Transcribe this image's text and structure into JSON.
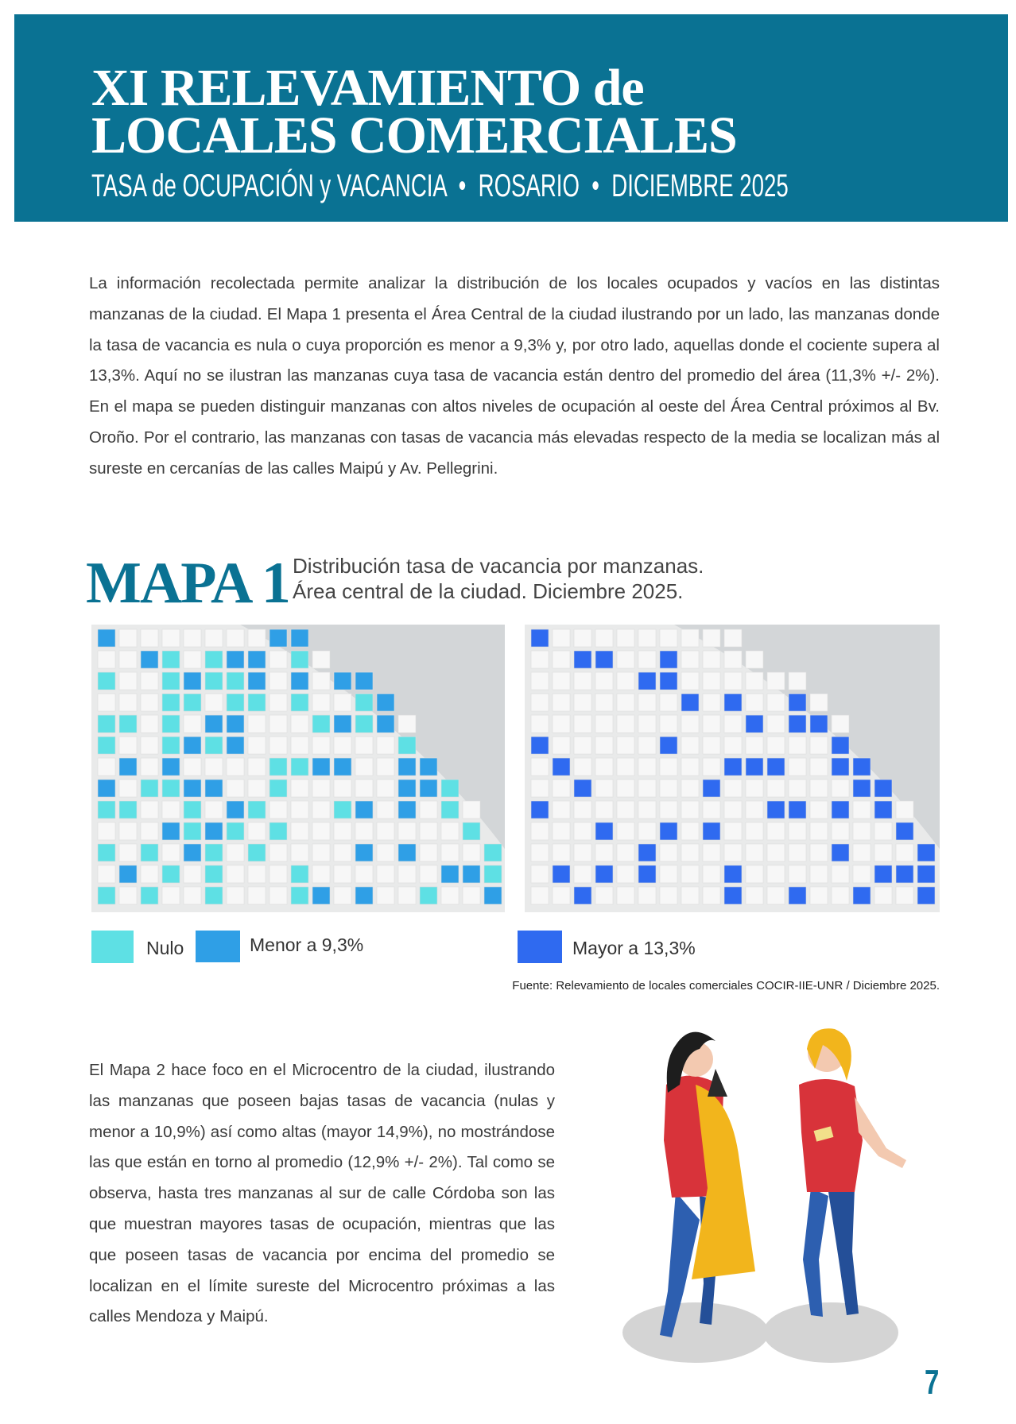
{
  "header": {
    "title_line1": "XI RELEVAMIENTO de",
    "title_line2": "LOCALES COMERCIALES",
    "subtitle": "TASA de OCUPACIÓN y VACANCIA  •  ROSARIO  •  DICIEMBRE 2025"
  },
  "intro": "La información recolectada permite analizar la distribución de los locales ocupados y vacíos en las distintas manzanas de la ciudad. El Mapa 1 presenta el Área Central de la ciudad ilustrando por un lado, las manzanas donde la tasa de vacancia es nula o cuya proporción es menor a 9,3% y, por otro lado, aquellas donde el cociente supera al 13,3%. Aquí no se ilustran las manzanas cuya tasa de vacancia están dentro del promedio del área (11,3% +/- 2%). En el mapa se pueden distinguir manzanas con altos niveles de ocupación al oeste del Área Central próximos al Bv. Oroño. Por el contrario, las manzanas con tasas de vacancia más elevadas respecto de la media se localizan más al sureste en cercanías de las calles Maipú y Av. Pellegrini.",
  "map": {
    "label": "MAPA 1",
    "caption_line1": "Distribución tasa de vacancia por manzanas.",
    "caption_line2": "Área central de la ciudad. Diciembre 2025.",
    "legend": [
      "Nulo",
      "Menor a 9,3%",
      "Mayor a 13,3%"
    ],
    "source": "Fuente: Relevamiento de locales comerciales COCIR-IIE-UNR / Diciembre 2025."
  },
  "body": "El Mapa 2 hace foco en el Microcentro de la ciudad, ilustrando las manzanas que poseen bajas tasas de vacancia (nulas y menor a 10,9%) así como altas (mayor 14,9%), no mostrándose las que están en torno al promedio (12,9% +/- 2%). Tal como se observa, hasta tres manzanas al sur de calle Córdoba son las que muestran mayores tasas de ocupación, mientras que las que poseen tasas de vacancia por encima del promedio se localizan en el límite sureste del Microcentro próximas a las calles Mendoza y Maipú.",
  "page_number": "7"
}
